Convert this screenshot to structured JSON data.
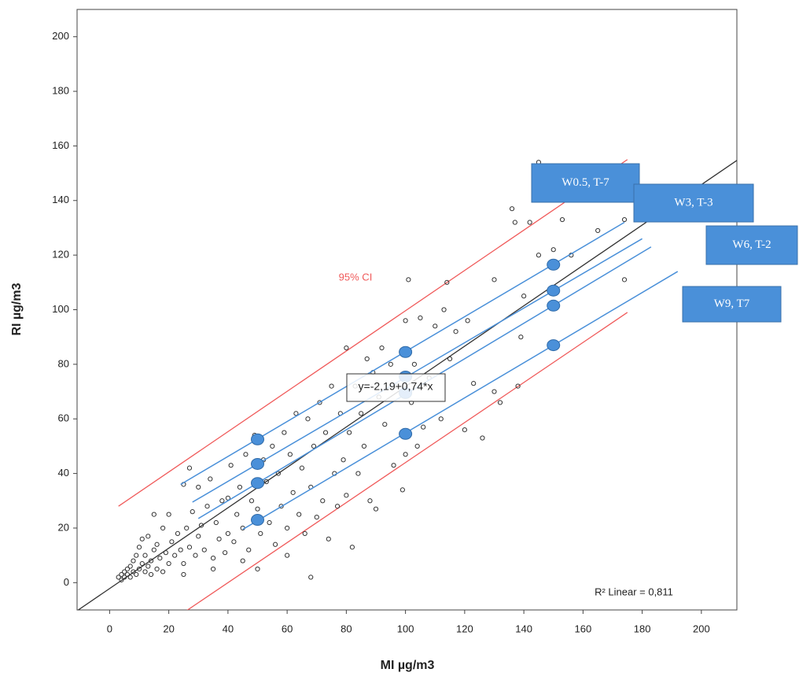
{
  "chart_data": {
    "type": "scatter",
    "x_label": "MI µg/m3",
    "y_label": "RI µg/m3",
    "xlim": [
      -11,
      212
    ],
    "ylim": [
      -10,
      210
    ],
    "xticks": [
      0,
      20,
      40,
      60,
      80,
      100,
      120,
      140,
      160,
      180,
      200
    ],
    "yticks": [
      0,
      20,
      40,
      60,
      80,
      100,
      120,
      140,
      160,
      180,
      200
    ],
    "color": "#333333",
    "x": [
      3,
      4,
      4,
      5,
      5,
      6,
      6,
      7,
      7,
      8,
      8,
      9,
      9,
      10,
      10,
      11,
      11,
      12,
      12,
      13,
      13,
      14,
      14,
      15,
      15,
      16,
      16,
      17,
      18,
      18,
      19,
      20,
      20,
      21,
      22,
      23,
      24,
      25,
      25,
      26,
      27,
      27,
      28,
      29,
      30,
      30,
      31,
      32,
      33,
      34,
      35,
      36,
      37,
      38,
      39,
      40,
      40,
      41,
      42,
      43,
      44,
      45,
      46,
      47,
      48,
      49,
      50,
      51,
      52,
      53,
      54,
      55,
      56,
      57,
      58,
      59,
      60,
      61,
      62,
      63,
      64,
      65,
      66,
      67,
      68,
      68,
      69,
      70,
      71,
      72,
      73,
      74,
      75,
      76,
      77,
      78,
      79,
      80,
      80,
      81,
      82,
      83,
      84,
      85,
      86,
      87,
      88,
      89,
      90,
      91,
      92,
      93,
      95,
      96,
      97,
      99,
      100,
      100,
      101,
      102,
      103,
      104,
      105,
      106,
      108,
      110,
      112,
      113,
      114,
      115,
      117,
      120,
      121,
      123,
      126,
      130,
      130,
      132,
      136,
      137,
      138,
      139,
      140,
      142,
      145,
      145,
      150,
      153,
      156,
      165,
      174,
      174,
      50,
      45,
      60,
      35,
      25
    ],
    "values": [
      2,
      3,
      1,
      2,
      4,
      3,
      5,
      2,
      6,
      4,
      8,
      3,
      10,
      5,
      13,
      7,
      16,
      4,
      10,
      6,
      17,
      8,
      3,
      12,
      25,
      5,
      14,
      9,
      20,
      4,
      11,
      25,
      7,
      15,
      10,
      18,
      12,
      36,
      7,
      20,
      42,
      13,
      26,
      10,
      35,
      17,
      21,
      12,
      28,
      38,
      9,
      22,
      16,
      30,
      11,
      31,
      18,
      43,
      15,
      25,
      35,
      20,
      47,
      12,
      30,
      54,
      27,
      18,
      45,
      37,
      22,
      50,
      14,
      40,
      28,
      55,
      20,
      47,
      33,
      62,
      25,
      42,
      18,
      60,
      2,
      35,
      50,
      24,
      66,
      30,
      55,
      16,
      72,
      40,
      28,
      62,
      45,
      86,
      32,
      55,
      13,
      72,
      40,
      62,
      50,
      82,
      30,
      77,
      27,
      68,
      86,
      58,
      80,
      43,
      72,
      34,
      96,
      47,
      111,
      66,
      80,
      50,
      97,
      57,
      75,
      94,
      60,
      100,
      110,
      82,
      92,
      56,
      96,
      73,
      53,
      70,
      111,
      66,
      137,
      132,
      72,
      90,
      105,
      132,
      120,
      154,
      122,
      133,
      120,
      129,
      133,
      111,
      5,
      8,
      10,
      5,
      3
    ],
    "lines": [
      {
        "color": "#333333",
        "x": [
          -11,
          212
        ],
        "values": [
          -10.3,
          154.7
        ]
      },
      {
        "color": "#f05a5a",
        "x": [
          3,
          175
        ],
        "values": [
          28,
          155
        ]
      },
      {
        "color": "#f05a5a",
        "x": [
          25,
          175
        ],
        "values": [
          -11,
          99
        ]
      }
    ],
    "series": [
      {
        "name": "W0.5, T-7",
        "color": "#4a90d9",
        "x": [
          24,
          174
        ],
        "values": [
          36,
          132
        ],
        "points_x": [
          50,
          100,
          150
        ],
        "points": [
          52.5,
          84.5,
          116.5
        ]
      },
      {
        "name": "W3, T-3",
        "color": "#4a90d9",
        "x": [
          28,
          180
        ],
        "values": [
          29.5,
          126
        ],
        "points_x": [
          50,
          100,
          150
        ],
        "points": [
          43.5,
          75.5,
          107
        ]
      },
      {
        "name": "W6, T-2",
        "color": "#4a90d9",
        "x": [
          30,
          183
        ],
        "values": [
          23.5,
          123
        ],
        "points_x": [
          50,
          100,
          150
        ],
        "points": [
          36.5,
          69.5,
          101.5
        ]
      },
      {
        "name": "W9, T7",
        "color": "#4a90d9",
        "x": [
          45,
          192
        ],
        "values": [
          19.5,
          114
        ],
        "points_x": [
          50,
          100,
          150
        ],
        "points": [
          23,
          54.5,
          87
        ]
      }
    ],
    "annotations": [
      "95% CI",
      "y=-2,19+0,74*x",
      "R² Linear = 0,811"
    ]
  }
}
